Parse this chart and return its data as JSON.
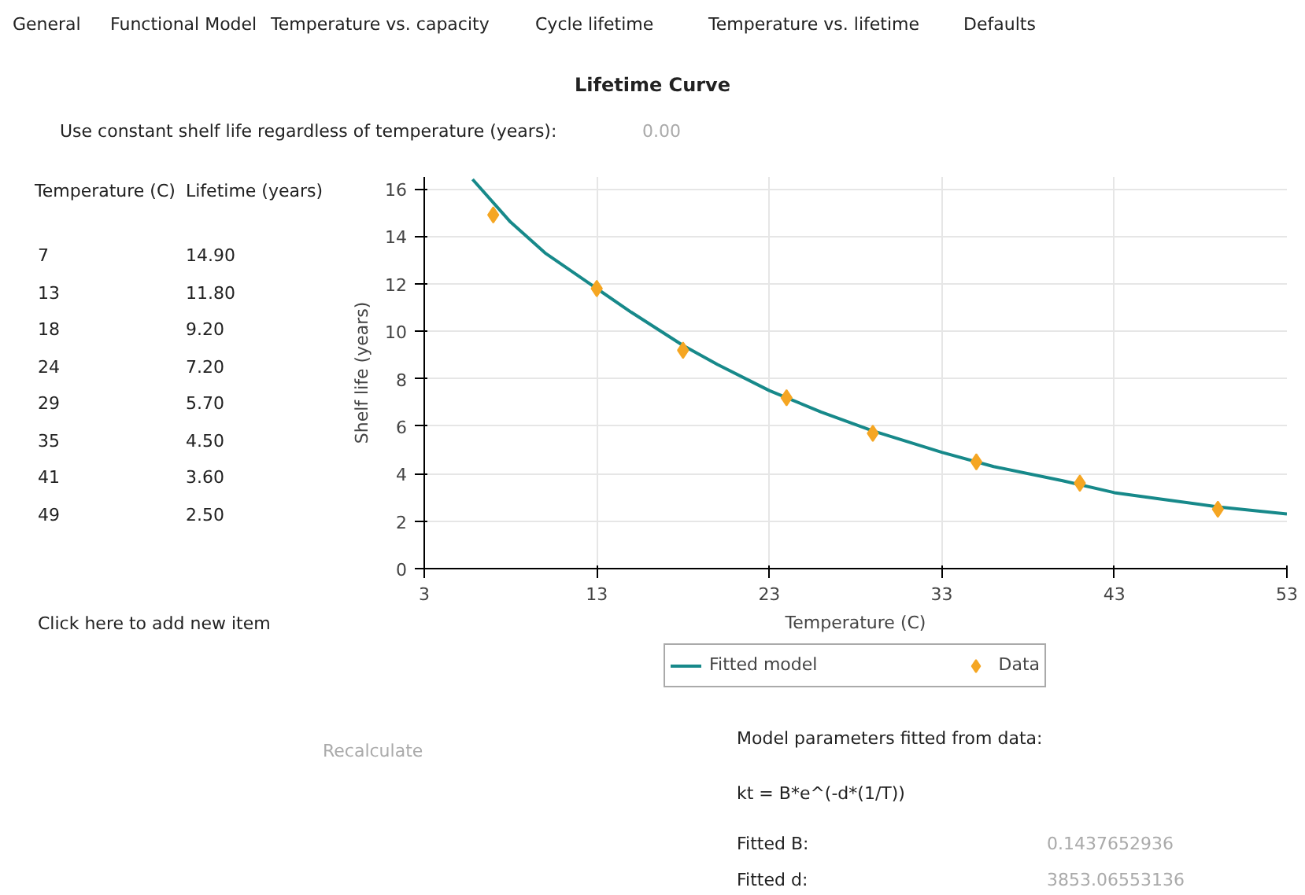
{
  "chart_data": {
    "type": "scatter",
    "title": "Lifetime Curve",
    "xlabel": "Temperature (C)",
    "ylabel": "Shelf life (years)",
    "xlim": [
      3,
      53
    ],
    "xticks": [
      3,
      13,
      23,
      33,
      43,
      53
    ],
    "ylim": [
      0,
      16.5
    ],
    "yticks": [
      0,
      2,
      4,
      6,
      8,
      10,
      12,
      14,
      16
    ],
    "grid": true,
    "legend": "bottom",
    "series": [
      {
        "name": "Fitted model",
        "type": "line",
        "color": "#17898a",
        "x": [
          5.8,
          8,
          10,
          13,
          15,
          18,
          20,
          23,
          26,
          29,
          33,
          36,
          40,
          43,
          46,
          49,
          53
        ],
        "values": [
          16.4,
          14.6,
          13.3,
          11.8,
          10.8,
          9.4,
          8.6,
          7.5,
          6.6,
          5.8,
          4.9,
          4.3,
          3.7,
          3.2,
          2.9,
          2.6,
          2.3
        ]
      },
      {
        "name": "Data",
        "color": "#f5a623",
        "marker": "diamond",
        "x": [
          7,
          13,
          18,
          24,
          29,
          35,
          41,
          49
        ],
        "values": [
          14.9,
          11.8,
          9.2,
          7.2,
          5.7,
          4.5,
          3.6,
          2.5
        ]
      }
    ],
    "annotations": [
      "General",
      "Functional Model",
      "Temperature vs. capacity",
      "Cycle lifetime",
      "Temperature vs. lifetime",
      "Defaults",
      "Use constant shelf life regardless of temperature (years):",
      "0.00",
      "Temperature (C)",
      "Lifetime (years)",
      "Click here to add new item",
      "Recalculate",
      "Model parameters fitted from data:",
      "kt = B*e^(-d*(1/T))",
      "Fitted B:",
      "0.1437652936",
      "Fitted d:",
      "3853.06553136",
      "7",
      "14.90",
      "13",
      "11.80",
      "18",
      "9.20",
      "24",
      "7.20",
      "29",
      "5.70",
      "35",
      "4.50",
      "41",
      "3.60",
      "49",
      "2.50"
    ]
  }
}
